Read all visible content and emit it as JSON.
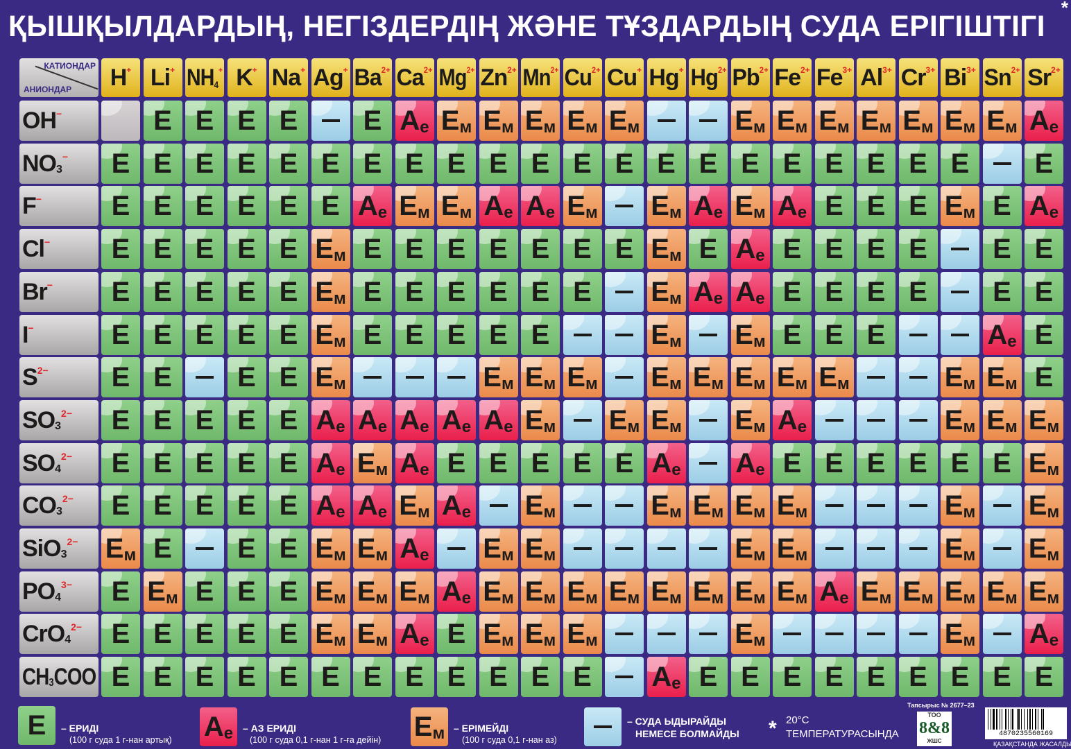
{
  "title": "ҚЫШҚЫЛДАРДЫҢ, НЕГІЗДЕРДІҢ ЖӘНЕ ТҰЗДАРДЫҢ СУДА ЕРІГІШТІГІ",
  "title_star": "*",
  "corner": {
    "cations_label": "КАТИОНДАР",
    "anions_label": "АНИОНДАР"
  },
  "colors": {
    "background": "#3a2a84",
    "soluble": "#7fc47a",
    "slightly_soluble": "#ee2a55",
    "insoluble": "#ef9a5a",
    "decomposes": "#a9d6ec",
    "cation_header": "#e8c12a"
  },
  "cations": [
    {
      "symbol": "H",
      "sub": "",
      "charge": "+"
    },
    {
      "symbol": "Li",
      "sub": "",
      "charge": "+"
    },
    {
      "symbol": "NH",
      "sub": "4",
      "charge": "+"
    },
    {
      "symbol": "K",
      "sub": "",
      "charge": "+"
    },
    {
      "symbol": "Na",
      "sub": "",
      "charge": "+"
    },
    {
      "symbol": "Ag",
      "sub": "",
      "charge": "+"
    },
    {
      "symbol": "Ba",
      "sub": "",
      "charge": "2+"
    },
    {
      "symbol": "Ca",
      "sub": "",
      "charge": "2+"
    },
    {
      "symbol": "Mg",
      "sub": "",
      "charge": "2+"
    },
    {
      "symbol": "Zn",
      "sub": "",
      "charge": "2+"
    },
    {
      "symbol": "Mn",
      "sub": "",
      "charge": "2+"
    },
    {
      "symbol": "Cu",
      "sub": "",
      "charge": "2+"
    },
    {
      "symbol": "Cu",
      "sub": "",
      "charge": "+"
    },
    {
      "symbol": "Hg",
      "sub": "",
      "charge": "+"
    },
    {
      "symbol": "Hg",
      "sub": "",
      "charge": "2+"
    },
    {
      "symbol": "Pb",
      "sub": "",
      "charge": "2+"
    },
    {
      "symbol": "Fe",
      "sub": "",
      "charge": "2+"
    },
    {
      "symbol": "Fe",
      "sub": "",
      "charge": "3+"
    },
    {
      "symbol": "Al",
      "sub": "",
      "charge": "3+"
    },
    {
      "symbol": "Cr",
      "sub": "",
      "charge": "3+"
    },
    {
      "symbol": "Bi",
      "sub": "",
      "charge": "3+"
    },
    {
      "symbol": "Sn",
      "sub": "",
      "charge": "2+"
    },
    {
      "symbol": "Sr",
      "sub": "",
      "charge": "2+"
    }
  ],
  "anions": [
    {
      "formula": "OH",
      "sub": "",
      "tail": "",
      "charge": "−",
      "cells": [
        "",
        "Е",
        "Е",
        "Е",
        "Е",
        "—",
        "Е",
        "Ае",
        "Ем",
        "Ем",
        "Ем",
        "Ем",
        "Ем",
        "—",
        "—",
        "Ем",
        "Ем",
        "Ем",
        "Ем",
        "Ем",
        "Ем",
        "Ем",
        "Ае"
      ]
    },
    {
      "formula": "NO",
      "sub": "3",
      "tail": "",
      "charge": "−",
      "cells": [
        "Е",
        "Е",
        "Е",
        "Е",
        "Е",
        "Е",
        "Е",
        "Е",
        "Е",
        "Е",
        "Е",
        "Е",
        "Е",
        "Е",
        "Е",
        "Е",
        "Е",
        "Е",
        "Е",
        "Е",
        "Е",
        "—",
        "Е"
      ]
    },
    {
      "formula": "F",
      "sub": "",
      "tail": "",
      "charge": "−",
      "cells": [
        "Е",
        "Е",
        "Е",
        "Е",
        "Е",
        "Е",
        "Ае",
        "Ем",
        "Ем",
        "Ае",
        "Ае",
        "Ем",
        "—",
        "Ем",
        "Ае",
        "Ем",
        "Ае",
        "Е",
        "Е",
        "Е",
        "Ем",
        "Е",
        "Ае"
      ]
    },
    {
      "formula": "Cl",
      "sub": "",
      "tail": "",
      "charge": "−",
      "cells": [
        "Е",
        "Е",
        "Е",
        "Е",
        "Е",
        "Ем",
        "Е",
        "Е",
        "Е",
        "Е",
        "Е",
        "Е",
        "Е",
        "Ем",
        "Е",
        "Ае",
        "Е",
        "Е",
        "Е",
        "Е",
        "—",
        "Е",
        "Е"
      ]
    },
    {
      "formula": "Br",
      "sub": "",
      "tail": "",
      "charge": "−",
      "cells": [
        "Е",
        "Е",
        "Е",
        "Е",
        "Е",
        "Ем",
        "Е",
        "Е",
        "Е",
        "Е",
        "Е",
        "Е",
        "—",
        "Ем",
        "Ае",
        "Ае",
        "Е",
        "Е",
        "Е",
        "Е",
        "—",
        "Е",
        "Е"
      ]
    },
    {
      "formula": "I",
      "sub": "",
      "tail": "",
      "charge": "−",
      "cells": [
        "Е",
        "Е",
        "Е",
        "Е",
        "Е",
        "Ем",
        "Е",
        "Е",
        "Е",
        "Е",
        "Е",
        "—",
        "—",
        "Ем",
        "—",
        "Ем",
        "Е",
        "Е",
        "Е",
        "—",
        "—",
        "Ае",
        "Е"
      ]
    },
    {
      "formula": "S",
      "sub": "",
      "tail": "",
      "charge": "2−",
      "cells": [
        "Е",
        "Е",
        "—",
        "Е",
        "Е",
        "Ем",
        "—",
        "—",
        "—",
        "Ем",
        "Ем",
        "Ем",
        "—",
        "Ем",
        "Ем",
        "Ем",
        "Ем",
        "Ем",
        "—",
        "—",
        "Ем",
        "Ем",
        "Е"
      ]
    },
    {
      "formula": "SO",
      "sub": "3",
      "tail": "",
      "charge": "2−",
      "cells": [
        "Е",
        "Е",
        "Е",
        "Е",
        "Е",
        "Ае",
        "Ае",
        "Ае",
        "Ае",
        "Ае",
        "Ем",
        "—",
        "Ем",
        "Ем",
        "—",
        "Ем",
        "Ае",
        "—",
        "—",
        "—",
        "Ем",
        "Ем",
        "Ем"
      ]
    },
    {
      "formula": "SO",
      "sub": "4",
      "tail": "",
      "charge": "2−",
      "cells": [
        "Е",
        "Е",
        "Е",
        "Е",
        "Е",
        "Ае",
        "Ем",
        "Ае",
        "Е",
        "Е",
        "Е",
        "Е",
        "Е",
        "Ае",
        "—",
        "Ае",
        "Е",
        "Е",
        "Е",
        "Е",
        "Е",
        "Е",
        "Ем"
      ]
    },
    {
      "formula": "CO",
      "sub": "3",
      "tail": "",
      "charge": "2−",
      "cells": [
        "Е",
        "Е",
        "Е",
        "Е",
        "Е",
        "Ае",
        "Ае",
        "Ем",
        "Ае",
        "—",
        "Ем",
        "—",
        "—",
        "Ем",
        "Ем",
        "Ем",
        "Ем",
        "—",
        "—",
        "—",
        "Ем",
        "—",
        "Ем"
      ]
    },
    {
      "formula": "SiO",
      "sub": "3",
      "tail": "",
      "charge": "2−",
      "cells": [
        "Ем",
        "Е",
        "—",
        "Е",
        "Е",
        "Ем",
        "Ем",
        "Ае",
        "—",
        "Ем",
        "Ем",
        "—",
        "—",
        "—",
        "—",
        "Ем",
        "Ем",
        "—",
        "—",
        "—",
        "Ем",
        "—",
        "Ем"
      ]
    },
    {
      "formula": "PO",
      "sub": "4",
      "tail": "",
      "charge": "3−",
      "cells": [
        "Е",
        "Ем",
        "Е",
        "Е",
        "Е",
        "Ем",
        "Ем",
        "Ем",
        "Ае",
        "Ем",
        "Ем",
        "Ем",
        "Ем",
        "Ем",
        "Ем",
        "Ем",
        "Ем",
        "Ае",
        "Ем",
        "Ем",
        "Ем",
        "Ем",
        "Ем"
      ]
    },
    {
      "formula": "CrO",
      "sub": "4",
      "tail": "",
      "charge": "2−",
      "cells": [
        "Е",
        "Е",
        "Е",
        "Е",
        "Е",
        "Ем",
        "Ем",
        "Ае",
        "Е",
        "Ем",
        "Ем",
        "Ем",
        "—",
        "—",
        "—",
        "Ем",
        "—",
        "—",
        "—",
        "—",
        "Ем",
        "—",
        "Ае"
      ]
    },
    {
      "formula": "CH",
      "sub": "3",
      "tail": "COO",
      "charge": "",
      "cells": [
        "Е",
        "Е",
        "Е",
        "Е",
        "Е",
        "Е",
        "Е",
        "Е",
        "Е",
        "Е",
        "Е",
        "Е",
        "—",
        "Ае",
        "Е",
        "Е",
        "Е",
        "Е",
        "Е",
        "Е",
        "Е",
        "Е",
        "Е"
      ]
    }
  ],
  "legend": [
    {
      "symbol": "Е",
      "title": "– ЕРИДІ",
      "subtitle": "(100 г суда 1 г-нан артық)"
    },
    {
      "symbol": "Ае",
      "title": "– АЗ ЕРИДІ",
      "subtitle": "(100 г суда 0,1 г-нан 1 г-ға дейін)"
    },
    {
      "symbol": "Ем",
      "title": "– ЕРІМЕЙДІ",
      "subtitle": "(100 г суда 0,1 г-нан аз)"
    },
    {
      "symbol": "—",
      "title": "– СУДА ЫДЫРАЙДЫ",
      "subtitle": "НЕМЕСЕ БОЛМАЙДЫ"
    }
  ],
  "note": {
    "star": "*",
    "temperature": "20°C",
    "text": "ТЕМПЕРАТУРАСЫНДА"
  },
  "order_number": "Тапсырыс № 2677–23",
  "publisher_logo": {
    "top": "ТОО",
    "main": "8&8",
    "bottom": "ЖШС"
  },
  "barcode": "4870235560169",
  "made_in": "ҚАЗАҚСТАНДА ЖАСАЛДЫ"
}
